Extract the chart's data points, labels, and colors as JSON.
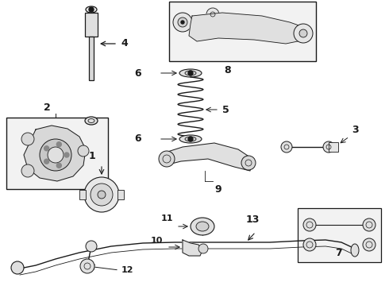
{
  "bg_color": "#ffffff",
  "line_color": "#1a1a1a",
  "label_color": "#000000",
  "figsize": [
    4.9,
    3.6
  ],
  "dpi": 100
}
